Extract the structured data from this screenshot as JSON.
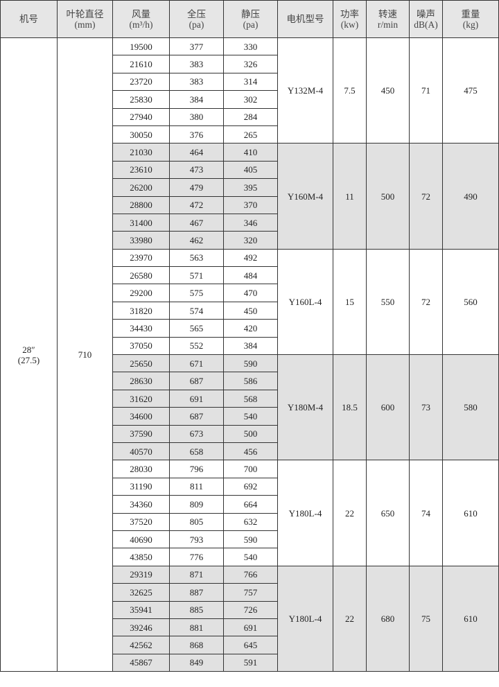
{
  "header": [
    {
      "line1": "机号",
      "line2": ""
    },
    {
      "line1": "叶轮直径",
      "line2": "(mm)"
    },
    {
      "line1": "风量",
      "line2": "(m³/h)"
    },
    {
      "line1": "全压",
      "line2": "(pa)"
    },
    {
      "line1": "静压",
      "line2": "(pa)"
    },
    {
      "line1": "电机型号",
      "line2": ""
    },
    {
      "line1": "功率",
      "line2": "(kw)"
    },
    {
      "line1": "转速",
      "line2": "r/min"
    },
    {
      "line1": "噪声",
      "line2": "dB(A)"
    },
    {
      "line1": "重量",
      "line2": "(kg)"
    }
  ],
  "machine_no": {
    "line1": "28″",
    "line2": "(27.5)"
  },
  "impeller_diameter": "710",
  "shade_color": "#e1e1e1",
  "groups": [
    {
      "motor": "Y132M-4",
      "power": "7.5",
      "speed": "450",
      "noise": "71",
      "weight": "475",
      "shaded": false,
      "rows": [
        [
          "19500",
          "377",
          "330"
        ],
        [
          "21610",
          "383",
          "326"
        ],
        [
          "23720",
          "383",
          "314"
        ],
        [
          "25830",
          "384",
          "302"
        ],
        [
          "27940",
          "380",
          "284"
        ],
        [
          "30050",
          "376",
          "265"
        ]
      ]
    },
    {
      "motor": "Y160M-4",
      "power": "11",
      "speed": "500",
      "noise": "72",
      "weight": "490",
      "shaded": true,
      "rows": [
        [
          "21030",
          "464",
          "410"
        ],
        [
          "23610",
          "473",
          "405"
        ],
        [
          "26200",
          "479",
          "395"
        ],
        [
          "28800",
          "472",
          "370"
        ],
        [
          "31400",
          "467",
          "346"
        ],
        [
          "33980",
          "462",
          "320"
        ]
      ]
    },
    {
      "motor": "Y160L-4",
      "power": "15",
      "speed": "550",
      "noise": "72",
      "weight": "560",
      "shaded": false,
      "rows": [
        [
          "23970",
          "563",
          "492"
        ],
        [
          "26580",
          "571",
          "484"
        ],
        [
          "29200",
          "575",
          "470"
        ],
        [
          "31820",
          "574",
          "450"
        ],
        [
          "34430",
          "565",
          "420"
        ],
        [
          "37050",
          "552",
          "384"
        ]
      ]
    },
    {
      "motor": "Y180M-4",
      "power": "18.5",
      "speed": "600",
      "noise": "73",
      "weight": "580",
      "shaded": true,
      "rows": [
        [
          "25650",
          "671",
          "590"
        ],
        [
          "28630",
          "687",
          "586"
        ],
        [
          "31620",
          "691",
          "568"
        ],
        [
          "34600",
          "687",
          "540"
        ],
        [
          "37590",
          "673",
          "500"
        ],
        [
          "40570",
          "658",
          "456"
        ]
      ]
    },
    {
      "motor": "Y180L-4",
      "power": "22",
      "speed": "650",
      "noise": "74",
      "weight": "610",
      "shaded": false,
      "rows": [
        [
          "28030",
          "796",
          "700"
        ],
        [
          "31190",
          "811",
          "692"
        ],
        [
          "34360",
          "809",
          "664"
        ],
        [
          "37520",
          "805",
          "632"
        ],
        [
          "40690",
          "793",
          "590"
        ],
        [
          "43850",
          "776",
          "540"
        ]
      ]
    },
    {
      "motor": "Y180L-4",
      "power": "22",
      "speed": "680",
      "noise": "75",
      "weight": "610",
      "shaded": true,
      "rows": [
        [
          "29319",
          "871",
          "766"
        ],
        [
          "32625",
          "887",
          "757"
        ],
        [
          "35941",
          "885",
          "726"
        ],
        [
          "39246",
          "881",
          "691"
        ],
        [
          "42562",
          "868",
          "645"
        ],
        [
          "45867",
          "849",
          "591"
        ]
      ]
    }
  ]
}
